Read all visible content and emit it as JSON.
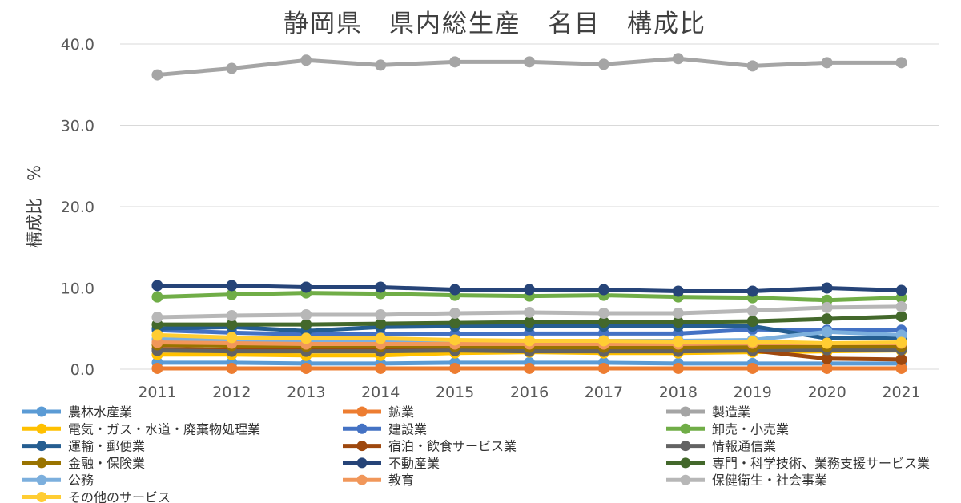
{
  "chart_data": {
    "type": "line",
    "title": "静岡県　県内総生産　名目　構成比",
    "xlabel": "",
    "ylabel": "構成比　%",
    "categories": [
      "2011",
      "2012",
      "2013",
      "2014",
      "2015",
      "2016",
      "2017",
      "2018",
      "2019",
      "2020",
      "2021"
    ],
    "ylim": [
      0,
      40
    ],
    "yticks": [
      0,
      10,
      20,
      30,
      40
    ],
    "ytick_labels": [
      "0.0",
      "10.0",
      "20.0",
      "30.0",
      "40.0"
    ],
    "grid": true,
    "legend_position": "bottom",
    "series": [
      {
        "name": "農林水産業",
        "color": "#5B9BD5",
        "values": [
          0.8,
          0.8,
          0.7,
          0.7,
          0.8,
          0.8,
          0.8,
          0.7,
          0.7,
          0.7,
          0.7
        ]
      },
      {
        "name": "鉱業",
        "color": "#ED7D31",
        "values": [
          0.1,
          0.1,
          0.1,
          0.1,
          0.1,
          0.1,
          0.1,
          0.1,
          0.1,
          0.1,
          0.1
        ]
      },
      {
        "name": "製造業",
        "color": "#A5A5A5",
        "values": [
          36.2,
          37.0,
          38.0,
          37.4,
          37.8,
          37.8,
          37.5,
          38.2,
          37.3,
          37.7,
          37.7
        ]
      },
      {
        "name": "電気・ガス・水道・廃棄物処理業",
        "color": "#FFC000",
        "values": [
          1.8,
          1.8,
          1.7,
          1.7,
          2.0,
          2.1,
          2.0,
          2.0,
          2.1,
          2.2,
          2.3
        ]
      },
      {
        "name": "建設業",
        "color": "#4472C4",
        "values": [
          4.8,
          4.5,
          4.3,
          4.3,
          4.3,
          4.4,
          4.4,
          4.4,
          4.9,
          4.8,
          4.8
        ]
      },
      {
        "name": "卸売・小売業",
        "color": "#70AD47",
        "values": [
          8.9,
          9.2,
          9.4,
          9.3,
          9.1,
          9.0,
          9.1,
          8.9,
          8.8,
          8.5,
          8.8
        ]
      },
      {
        "name": "運輸・郵便業",
        "color": "#255E91",
        "values": [
          5.0,
          5.2,
          4.7,
          5.2,
          5.3,
          5.3,
          5.3,
          5.3,
          5.3,
          3.8,
          3.9
        ]
      },
      {
        "name": "宿泊・飲食サービス業",
        "color": "#9E480E",
        "values": [
          2.5,
          2.4,
          2.4,
          2.4,
          2.3,
          2.4,
          2.4,
          2.4,
          2.3,
          1.3,
          1.2
        ]
      },
      {
        "name": "情報通信業",
        "color": "#636363",
        "values": [
          2.3,
          2.2,
          2.2,
          2.2,
          2.3,
          2.2,
          2.2,
          2.2,
          2.3,
          2.4,
          2.4
        ]
      },
      {
        "name": "金融・保険業",
        "color": "#997300",
        "values": [
          3.0,
          2.9,
          2.8,
          2.8,
          2.8,
          2.7,
          2.7,
          2.7,
          2.7,
          2.8,
          2.8
        ]
      },
      {
        "name": "不動産業",
        "color": "#264478",
        "values": [
          10.3,
          10.3,
          10.1,
          10.1,
          9.8,
          9.8,
          9.8,
          9.6,
          9.6,
          10.0,
          9.7
        ]
      },
      {
        "name": "専門・科学技術、業務支援サービス業",
        "color": "#43682B",
        "values": [
          5.5,
          5.5,
          5.5,
          5.6,
          5.7,
          5.8,
          5.8,
          5.8,
          5.9,
          6.2,
          6.5
        ]
      },
      {
        "name": "公務",
        "color": "#7CAFDD",
        "values": [
          3.7,
          3.6,
          3.6,
          3.6,
          3.5,
          3.5,
          3.5,
          3.5,
          3.6,
          4.6,
          4.2
        ]
      },
      {
        "name": "教育",
        "color": "#F1975A",
        "values": [
          3.3,
          3.2,
          3.1,
          3.1,
          3.1,
          3.1,
          3.1,
          3.1,
          3.2,
          3.2,
          3.2
        ]
      },
      {
        "name": "保健衛生・社会事業",
        "color": "#B7B7B7",
        "values": [
          6.4,
          6.6,
          6.7,
          6.7,
          6.9,
          7.0,
          6.9,
          6.9,
          7.2,
          7.6,
          7.7
        ]
      },
      {
        "name": "その他のサービス",
        "color": "#FFCD33",
        "values": [
          4.2,
          3.9,
          3.8,
          3.8,
          3.6,
          3.5,
          3.5,
          3.4,
          3.4,
          3.2,
          3.3
        ]
      }
    ]
  }
}
